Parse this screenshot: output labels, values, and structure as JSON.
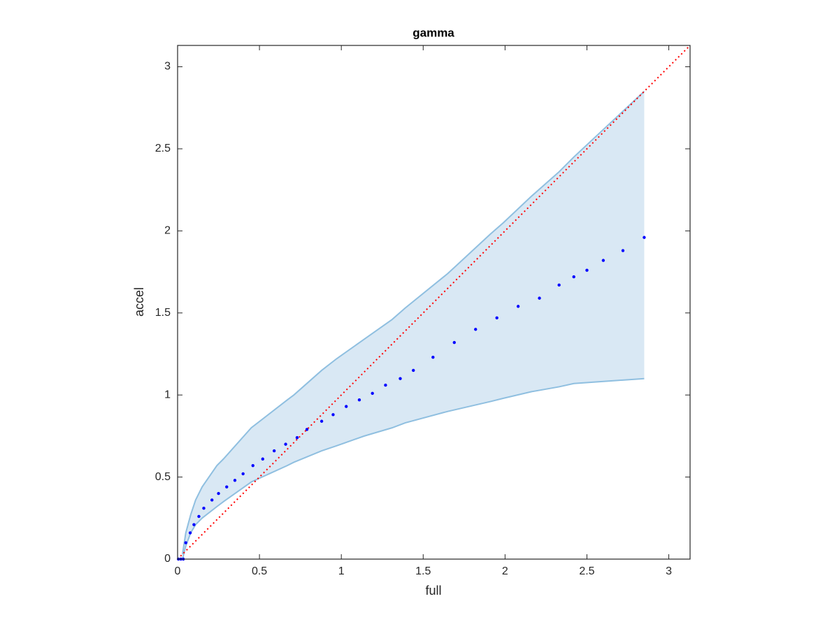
{
  "chart_data": {
    "type": "scatter",
    "title": "gamma",
    "x_label": "full",
    "y_label": "accel",
    "xlim": [
      0,
      3.13
    ],
    "ylim": [
      0,
      3.13
    ],
    "xticks": [
      0,
      0.5,
      1,
      1.5,
      2,
      2.5,
      3
    ],
    "yticks": [
      0,
      0.5,
      1,
      1.5,
      2,
      2.5,
      3
    ],
    "band": {
      "color": "#d9e8f4",
      "edge_color": "#8fbfe0",
      "x": [
        0.03,
        0.05,
        0.08,
        0.11,
        0.15,
        0.24,
        0.28,
        0.45,
        0.67,
        0.71,
        0.88,
        0.97,
        1.14,
        1.31,
        1.39,
        1.65,
        1.91,
        1.99,
        2.16,
        2.33,
        2.42,
        2.85
      ],
      "upper": [
        0.03,
        0.16,
        0.27,
        0.36,
        0.44,
        0.57,
        0.61,
        0.8,
        0.97,
        1.0,
        1.15,
        1.22,
        1.34,
        1.46,
        1.53,
        1.74,
        1.98,
        2.05,
        2.21,
        2.36,
        2.45,
        2.85
      ],
      "lower": [
        0.0,
        0.08,
        0.16,
        0.21,
        0.25,
        0.32,
        0.35,
        0.47,
        0.57,
        0.59,
        0.66,
        0.69,
        0.75,
        0.8,
        0.83,
        0.9,
        0.96,
        0.98,
        1.02,
        1.05,
        1.07,
        1.1
      ]
    },
    "diagonal": {
      "color": "#ff0000",
      "x": [
        0,
        3.13
      ],
      "y": [
        0,
        3.13
      ]
    },
    "series": [
      {
        "name": "accel",
        "color": "#0000ff",
        "x": [
          0.005,
          0.02,
          0.035,
          0.05,
          0.077,
          0.1,
          0.13,
          0.16,
          0.21,
          0.25,
          0.3,
          0.35,
          0.4,
          0.46,
          0.52,
          0.59,
          0.66,
          0.73,
          0.79,
          0.88,
          0.95,
          1.03,
          1.11,
          1.19,
          1.27,
          1.36,
          1.44,
          1.56,
          1.69,
          1.82,
          1.95,
          2.08,
          2.21,
          2.33,
          2.42,
          2.5,
          2.6,
          2.72,
          2.85
        ],
        "values": [
          0,
          0,
          0,
          0.1,
          0.16,
          0.21,
          0.26,
          0.31,
          0.36,
          0.4,
          0.44,
          0.48,
          0.52,
          0.57,
          0.61,
          0.66,
          0.7,
          0.74,
          0.79,
          0.84,
          0.88,
          0.93,
          0.97,
          1.01,
          1.06,
          1.1,
          1.15,
          1.23,
          1.32,
          1.4,
          1.47,
          1.54,
          1.59,
          1.67,
          1.72,
          1.76,
          1.82,
          1.88,
          1.96
        ]
      }
    ]
  }
}
